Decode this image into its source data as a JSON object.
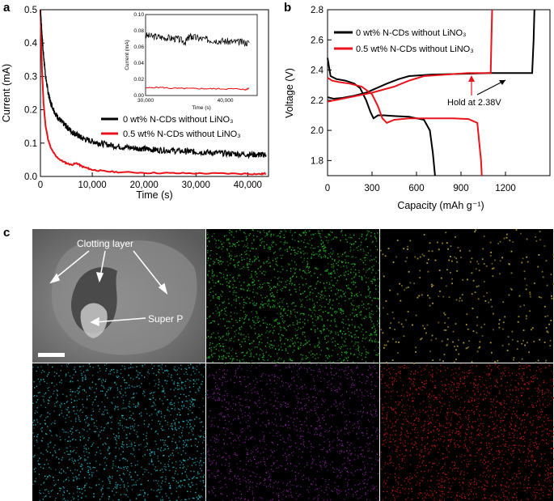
{
  "panels": {
    "a": "a",
    "b": "b",
    "c": "c"
  },
  "chart_data": [
    {
      "id": "a",
      "type": "line",
      "xlabel": "Time (s)",
      "ylabel": "Current (mA)",
      "xlim": [
        0,
        44000
      ],
      "ylim": [
        0,
        0.5
      ],
      "xticks": [
        0,
        10000,
        20000,
        30000,
        40000
      ],
      "xtick_labels": [
        "0",
        "10,000",
        "20,000",
        "30,000",
        "40,000"
      ],
      "yticks": [
        0,
        0.1,
        0.2,
        0.3,
        0.4,
        0.5
      ],
      "ytick_labels": [
        "0.0",
        "0.1",
        "0.2",
        "0.3",
        "0.4",
        "0.5"
      ],
      "legend_position": "center-right",
      "series": [
        {
          "name": "0 wt% N-CDs without LiNO₃",
          "color": "#000000",
          "x": [
            0,
            500,
            1000,
            1500,
            2000,
            3000,
            4000,
            5000,
            6000,
            7000,
            8000,
            10000,
            12000,
            15000,
            18000,
            20000,
            22000,
            25000,
            28000,
            30000,
            33000,
            36000,
            39000,
            42000,
            43500
          ],
          "y": [
            0.5,
            0.38,
            0.3,
            0.25,
            0.22,
            0.185,
            0.165,
            0.15,
            0.135,
            0.125,
            0.115,
            0.105,
            0.098,
            0.09,
            0.085,
            0.083,
            0.08,
            0.078,
            0.075,
            0.074,
            0.071,
            0.069,
            0.067,
            0.065,
            0.065
          ]
        },
        {
          "name": "0.5 wt% N-CDs without LiNO₃",
          "color": "#e8141b",
          "x": [
            0,
            300,
            600,
            1000,
            1500,
            2000,
            3000,
            4000,
            5000,
            6000,
            7000,
            8000,
            9000,
            10000,
            12000,
            15000,
            20000,
            25000,
            30000,
            35000,
            40000,
            42500,
            43500
          ],
          "y": [
            0.5,
            0.32,
            0.22,
            0.15,
            0.11,
            0.085,
            0.06,
            0.048,
            0.04,
            0.035,
            0.04,
            0.03,
            0.025,
            0.02,
            0.016,
            0.013,
            0.011,
            0.01,
            0.009,
            0.009,
            0.008,
            0.007,
            0.009
          ]
        }
      ],
      "inset": {
        "xlabel": "Time (s)",
        "ylabel": "Current (mA)",
        "xlim": [
          30000,
          44000
        ],
        "ylim": [
          0,
          0.1
        ],
        "xtick_labels": [
          "30,000",
          "40,000"
        ],
        "ytick_labels": [
          "0.00",
          "0.02",
          "0.04",
          "0.06",
          "0.08",
          "0.10"
        ],
        "series": [
          {
            "color": "#000000",
            "x": [
              30000,
              31000,
              32000,
              33000,
              34000,
              35000,
              35500,
              36000,
              37000,
              38000,
              39000,
              40000,
              41000,
              42000,
              43000
            ],
            "y": [
              0.074,
              0.073,
              0.072,
              0.071,
              0.07,
              0.066,
              0.073,
              0.072,
              0.07,
              0.069,
              0.068,
              0.067,
              0.066,
              0.066,
              0.065
            ]
          },
          {
            "color": "#e8141b",
            "x": [
              30000,
              31000,
              32000,
              33000,
              34000,
              35000,
              36000,
              37000,
              38000,
              39000,
              40000,
              41000,
              42000,
              42500,
              43000
            ],
            "y": [
              0.009,
              0.01,
              0.01,
              0.009,
              0.0088,
              0.0087,
              0.0086,
              0.0085,
              0.0084,
              0.0083,
              0.0082,
              0.0082,
              0.008,
              0.007,
              0.009
            ]
          }
        ]
      }
    },
    {
      "id": "b",
      "type": "line",
      "xlabel": "Capacity (mAh g⁻¹)",
      "ylabel": "Voltage (V)",
      "xlim": [
        0,
        1500
      ],
      "ylim": [
        1.7,
        2.8
      ],
      "xticks": [
        0,
        300,
        600,
        900,
        1200
      ],
      "xtick_labels": [
        "0",
        "300",
        "600",
        "900",
        "1200"
      ],
      "yticks": [
        1.8,
        2.0,
        2.2,
        2.4,
        2.6,
        2.8
      ],
      "ytick_labels": [
        "1.8",
        "2.0",
        "2.2",
        "2.4",
        "2.6",
        "2.8"
      ],
      "legend_position": "top-left",
      "annotation": "Hold at 2.38V",
      "series": [
        {
          "name": "0 wt% N-CDs without LiNO₃",
          "color": "#000000",
          "discharge": {
            "x": [
              0,
              20,
              60,
              120,
              180,
              220,
              260,
              290,
              310,
              340,
              380,
              450,
              550,
              650,
              690,
              710,
              725
            ],
            "y": [
              2.48,
              2.36,
              2.34,
              2.33,
              2.31,
              2.28,
              2.2,
              2.12,
              2.08,
              2.1,
              2.1,
              2.095,
              2.09,
              2.07,
              2.0,
              1.85,
              1.7
            ]
          },
          "charge": {
            "x": [
              0,
              40,
              100,
              180,
              260,
              330,
              400,
              480,
              550,
              700,
              900,
              1100,
              1300,
              1380,
              1390,
              1395
            ],
            "y": [
              2.22,
              2.21,
              2.215,
              2.23,
              2.25,
              2.28,
              2.31,
              2.34,
              2.36,
              2.37,
              2.375,
              2.38,
              2.38,
              2.38,
              2.6,
              2.8
            ]
          }
        },
        {
          "name": "0.5 wt% N-CDs without LiNO₃",
          "color": "#e8141b",
          "discharge": {
            "x": [
              0,
              30,
              80,
              150,
              230,
              300,
              340,
              370,
              400,
              450,
              550,
              700,
              850,
              950,
              1010,
              1025,
              1035,
              1040
            ],
            "y": [
              2.35,
              2.33,
              2.32,
              2.31,
              2.29,
              2.24,
              2.16,
              2.08,
              2.05,
              2.07,
              2.08,
              2.08,
              2.08,
              2.075,
              2.05,
              1.9,
              1.8,
              1.7
            ]
          },
          "charge": {
            "x": [
              0,
              50,
              150,
              300,
              450,
              550,
              650,
              800,
              950,
              1060,
              1100,
              1105,
              1110
            ],
            "y": [
              2.19,
              2.2,
              2.22,
              2.25,
              2.29,
              2.33,
              2.36,
              2.37,
              2.38,
              2.38,
              2.38,
              2.6,
              2.8
            ]
          }
        }
      ]
    }
  ],
  "sem": {
    "labels": [
      "Clotting layer",
      "Super P"
    ],
    "scale_bar": true
  },
  "maps": [
    {
      "name": "green-map",
      "color": "#20c020"
    },
    {
      "name": "yellow-map",
      "color": "#b8a028"
    },
    {
      "name": "cyan-map",
      "color": "#20b8c8"
    },
    {
      "name": "magenta-map",
      "color": "#a020b8"
    },
    {
      "name": "red-map",
      "color": "#d01818"
    }
  ]
}
